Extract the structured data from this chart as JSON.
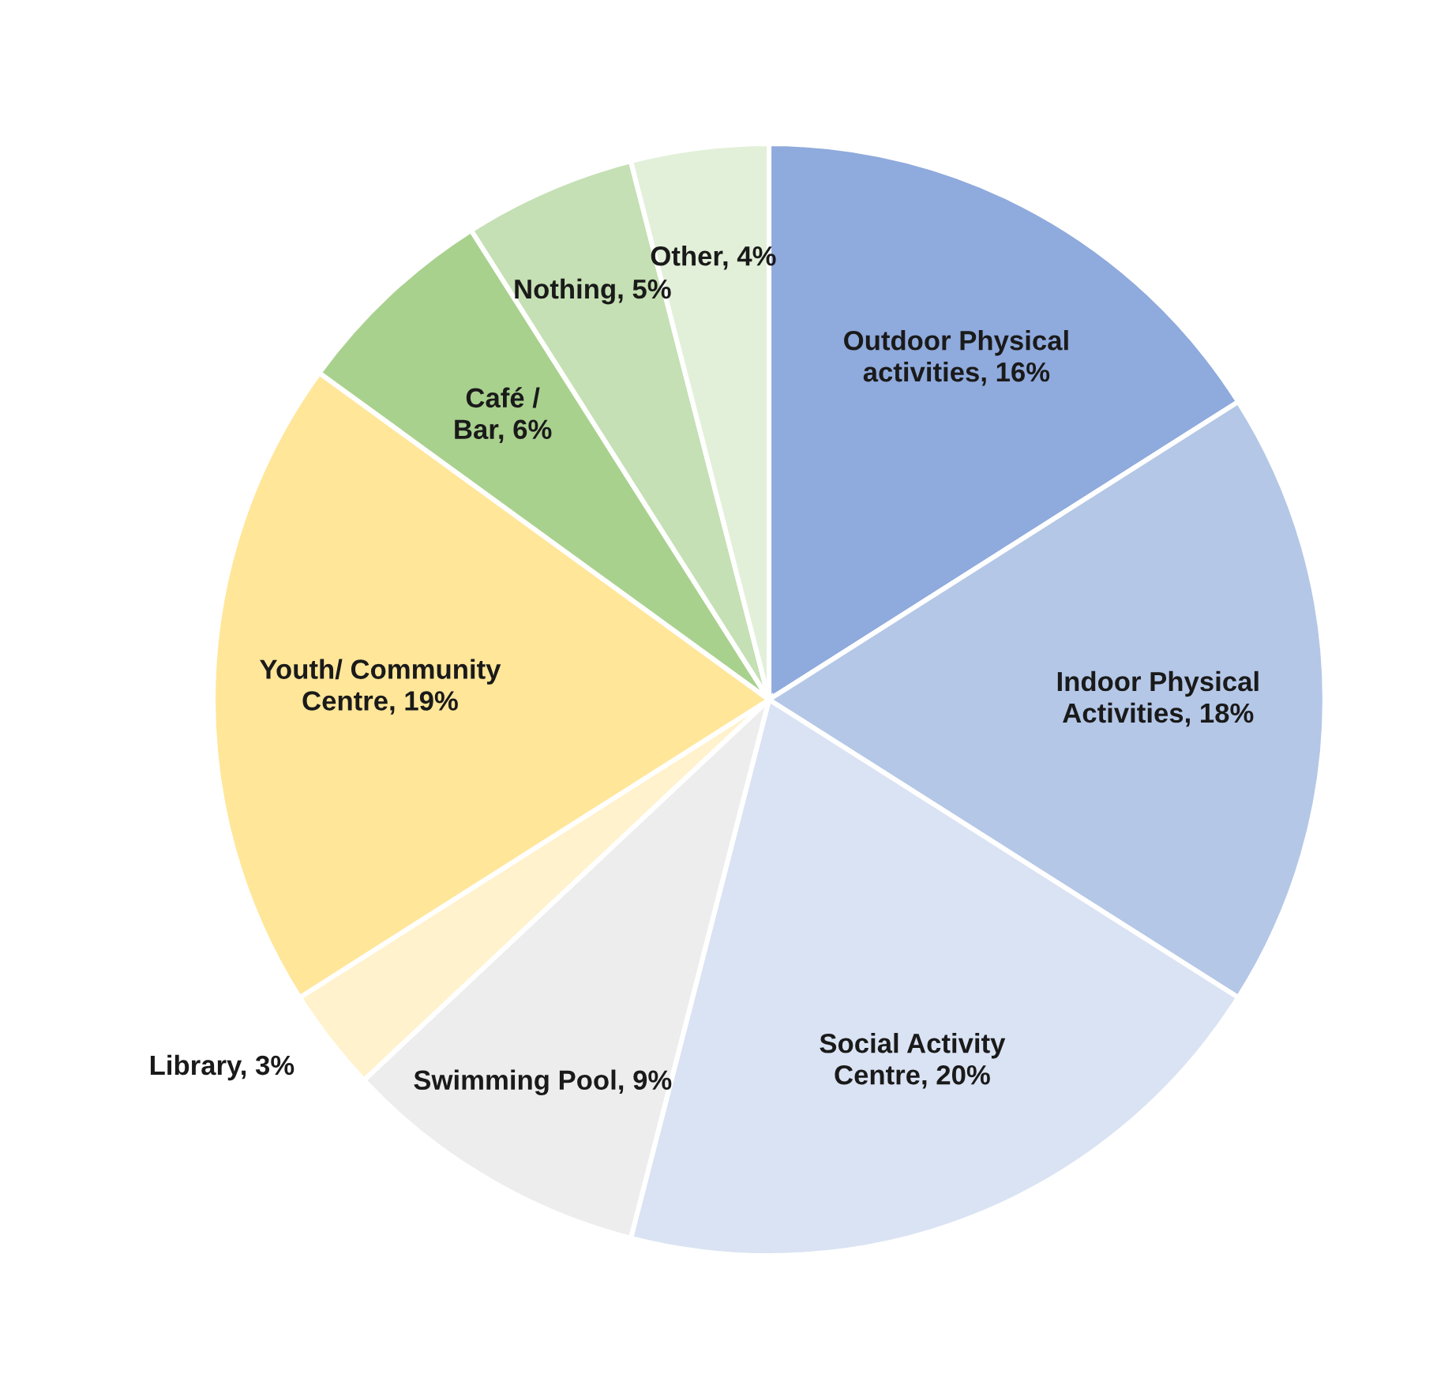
{
  "chart_data": {
    "type": "pie",
    "categories": [
      "Outdoor Physical\nactivities",
      "Indoor Physical\nActivities",
      "Social Activity\nCentre",
      "Swimming Pool",
      "Library",
      "Youth/ Community\nCentre",
      "Café /\nBar",
      "Nothing",
      "Other"
    ],
    "values": [
      16,
      18,
      20,
      9,
      3,
      19,
      6,
      5,
      4
    ],
    "value_labels": [
      "16%",
      "18%",
      "20%",
      "9%",
      "3%",
      "19%",
      "6%",
      "5%",
      "4%"
    ],
    "colors": [
      "#8faadc",
      "#b4c7e7",
      "#dae3f3",
      "#ededed",
      "#fff2cc",
      "#ffe699",
      "#a9d18e",
      "#c5e0b4",
      "#e2f0d9"
    ]
  }
}
